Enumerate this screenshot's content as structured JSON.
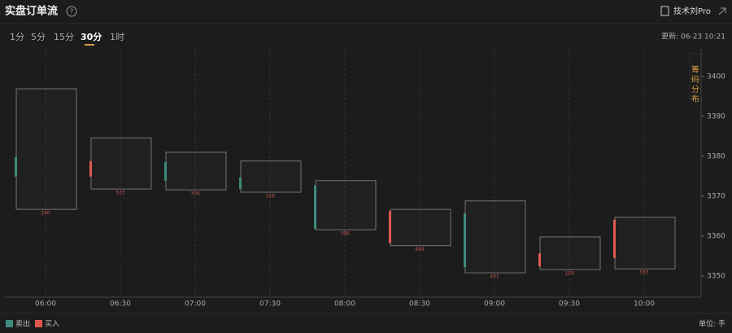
{
  "header": {
    "title": "实盘订单流",
    "help": "?",
    "account": "技术刘Pro",
    "update": "更新: 06-23 10:21",
    "side_tab": "筹码分布"
  },
  "tabs": [
    "1分",
    "5分",
    "15分",
    "30分",
    "1时"
  ],
  "active_tab": 3,
  "legend": [
    "卖出",
    "买入"
  ],
  "unit": "单位: 手",
  "chart_data": {
    "type": "candlestick",
    "categories": [
      "06:00",
      "06:30",
      "07:00",
      "07:30",
      "08:00",
      "08:30",
      "09:00",
      "09:30",
      "10:00"
    ],
    "open": [
      3379.8,
      3374.9,
      3378.6,
      3374.7,
      3372.7,
      3358.2,
      3365.7,
      3352.4,
      3354.5
    ],
    "close": [
      3374.9,
      3378.8,
      3373.9,
      3371.8,
      3361.8,
      3366.3,
      3352.2,
      3355.7,
      3364.1
    ],
    "high": [
      3396.9,
      3384.6,
      3381.0,
      3378.8,
      3373.9,
      3366.7,
      3368.8,
      3359.8,
      3364.7
    ],
    "low": [
      3366.7,
      3371.8,
      3371.6,
      3371.0,
      3361.6,
      3357.6,
      3350.8,
      3351.6,
      3351.8
    ],
    "totals": [
      240,
      533,
      304,
      316,
      386,
      469,
      401,
      159,
      555
    ],
    "up_color": "#e05a4f",
    "down_color": "#3d8b7d",
    "ylim": [
      3344.7,
      3406.9
    ],
    "yticks": [
      3350,
      3360,
      3370,
      3380,
      3390,
      3400
    ],
    "grid": true
  }
}
